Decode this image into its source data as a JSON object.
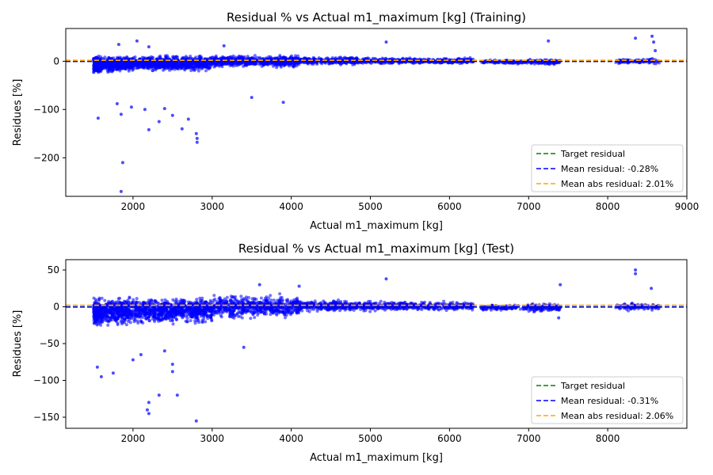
{
  "chart_data": [
    {
      "type": "scatter",
      "title": "Residual % vs Actual m1_maximum [kg] (Training)",
      "xlabel": "Actual m1_maximum [kg]",
      "ylabel": "Residues [%]",
      "xlim": [
        1150,
        9000
      ],
      "ylim": [
        -280,
        68
      ],
      "xticks": [
        2000,
        3000,
        4000,
        5000,
        6000,
        7000,
        8000,
        9000
      ],
      "yticks": [
        0,
        -100,
        -200
      ],
      "grid": false,
      "legend_location": "lower-right",
      "series": [
        {
          "name": "",
          "kind": "scatter",
          "color": "#0000ff",
          "clusters": [
            {
              "x": [
                1500,
                1600
              ],
              "y": [
                -30,
                15
              ],
              "count": 220
            },
            {
              "x": [
                1600,
                2000
              ],
              "y": [
                -25,
                15
              ],
              "count": 420
            },
            {
              "x": [
                2000,
                3000
              ],
              "y": [
                -22,
                14
              ],
              "count": 900
            },
            {
              "x": [
                3000,
                4100
              ],
              "y": [
                -14,
                14
              ],
              "count": 700
            },
            {
              "x": [
                4100,
                5000
              ],
              "y": [
                -8,
                10
              ],
              "count": 400
            },
            {
              "x": [
                5000,
                6300
              ],
              "y": [
                -6,
                8
              ],
              "count": 450
            },
            {
              "x": [
                6400,
                7000
              ],
              "y": [
                -6,
                4
              ],
              "count": 130
            },
            {
              "x": [
                7000,
                7400
              ],
              "y": [
                -8,
                6
              ],
              "count": 130
            },
            {
              "x": [
                8100,
                8650
              ],
              "y": [
                -6,
                6
              ],
              "count": 120
            }
          ],
          "outliers": [
            [
              1850,
              -270
            ],
            [
              1870,
              -210
            ],
            [
              1560,
              -118
            ],
            [
              1800,
              -88
            ],
            [
              1850,
              -110
            ],
            [
              2200,
              -142
            ],
            [
              2330,
              -125
            ],
            [
              2620,
              -140
            ],
            [
              2810,
              -160
            ],
            [
              2810,
              -168
            ],
            [
              2800,
              -150
            ],
            [
              2500,
              -112
            ],
            [
              1980,
              -95
            ],
            [
              2150,
              -100
            ],
            [
              2400,
              -98
            ],
            [
              2700,
              -120
            ],
            [
              3900,
              -85
            ],
            [
              3500,
              -75
            ],
            [
              2050,
              42
            ],
            [
              1820,
              35
            ],
            [
              2200,
              30
            ],
            [
              3150,
              32
            ],
            [
              5200,
              40
            ],
            [
              7250,
              42
            ],
            [
              8350,
              48
            ],
            [
              8560,
              52
            ],
            [
              8580,
              40
            ],
            [
              8600,
              22
            ]
          ]
        },
        {
          "name": "Target residual",
          "kind": "hline",
          "y": 0,
          "color": "#008000",
          "dash": "dashed"
        },
        {
          "name": "Mean residual: -0.28%",
          "kind": "hline",
          "y": -0.28,
          "color": "#0000ff",
          "dash": "dashed"
        },
        {
          "name": "Mean abs residual: 2.01%",
          "kind": "hline",
          "y": 2.01,
          "color": "#ffa500",
          "dash": "dashed"
        }
      ]
    },
    {
      "type": "scatter",
      "title": "Residual % vs Actual m1_maximum [kg] (Test)",
      "xlabel": "Actual m1_maximum [kg]",
      "ylabel": "Residues [%]",
      "xlim": [
        1150,
        9000
      ],
      "ylim": [
        -165,
        64
      ],
      "xticks": [
        2000,
        3000,
        4000,
        5000,
        6000,
        7000,
        8000
      ],
      "yticks": [
        50,
        0,
        -50,
        -100,
        -150
      ],
      "grid": false,
      "legend_location": "lower-right",
      "series": [
        {
          "name": "",
          "kind": "scatter",
          "color": "#0000ff",
          "clusters": [
            {
              "x": [
                1500,
                1600
              ],
              "y": [
                -30,
                15
              ],
              "count": 200
            },
            {
              "x": [
                1600,
                2000
              ],
              "y": [
                -28,
                16
              ],
              "count": 400
            },
            {
              "x": [
                2000,
                3000
              ],
              "y": [
                -26,
                16
              ],
              "count": 850
            },
            {
              "x": [
                3000,
                4100
              ],
              "y": [
                -18,
                18
              ],
              "count": 650
            },
            {
              "x": [
                4100,
                5000
              ],
              "y": [
                -8,
                10
              ],
              "count": 380
            },
            {
              "x": [
                5000,
                6300
              ],
              "y": [
                -6,
                8
              ],
              "count": 420
            },
            {
              "x": [
                6400,
                7000
              ],
              "y": [
                -6,
                4
              ],
              "count": 120
            },
            {
              "x": [
                7000,
                7400
              ],
              "y": [
                -8,
                6
              ],
              "count": 120
            },
            {
              "x": [
                8100,
                8650
              ],
              "y": [
                -6,
                6
              ],
              "count": 110
            }
          ],
          "outliers": [
            [
              2800,
              -155
            ],
            [
              2200,
              -130
            ],
            [
              2200,
              -145
            ],
            [
              2180,
              -140
            ],
            [
              2330,
              -120
            ],
            [
              2560,
              -120
            ],
            [
              2500,
              -88
            ],
            [
              2500,
              -78
            ],
            [
              1600,
              -95
            ],
            [
              1550,
              -82
            ],
            [
              1750,
              -90
            ],
            [
              2000,
              -72
            ],
            [
              2100,
              -65
            ],
            [
              2400,
              -60
            ],
            [
              3400,
              -55
            ],
            [
              5200,
              38
            ],
            [
              7400,
              30
            ],
            [
              8350,
              50
            ],
            [
              8350,
              45
            ],
            [
              8550,
              25
            ],
            [
              3600,
              30
            ],
            [
              4100,
              28
            ],
            [
              7380,
              -15
            ]
          ]
        },
        {
          "name": "Target residual",
          "kind": "hline",
          "y": 0,
          "color": "#008000",
          "dash": "dashed"
        },
        {
          "name": "Mean residual: -0.31%",
          "kind": "hline",
          "y": -0.31,
          "color": "#0000ff",
          "dash": "dashed"
        },
        {
          "name": "Mean abs residual: 2.06%",
          "kind": "hline",
          "y": 2.06,
          "color": "#ffa500",
          "dash": "dashed"
        }
      ]
    }
  ]
}
